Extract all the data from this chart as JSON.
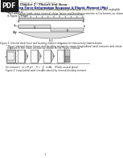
{
  "bg_color": "#ffffff",
  "pdf_box_color": "#1a1a1a",
  "header_small": "Chapter 2  Design of Beams",
  "chapter_sub": "Chapter 2 - Flexure and Shear",
  "section_title": "2.1 Section Force-Deformation Response & Plastic Moment (Mp)",
  "bullet1": "A beam is a structural member that is subjected primarily to transverse loads and negligible axial loads.",
  "bullet2": "The transverse loads cause internal shear forces and bending moments in the beams as shown in Figure 1 below:",
  "fig1_caption": "Figure 1. Internal shear force and bending moment diagrams for transversely loaded beams",
  "bullet3": "These internal shear forces and bending moments cause longitudinal axial stresses and shear stresses in the cross section as shown in the Figure 2 below:",
  "fig2_caption_eq": "For element i:  σi = M yi/I       Fi =            σi dAi  (Plastic neutral plane)",
  "fig2_caption": "Figure 2. Longitudinal axial stresses caused by internal bending moment",
  "page_number": "1",
  "line_color": "#555555",
  "text_color": "#222222",
  "title_color": "#000080",
  "fig_bg": "#e8e8e8"
}
